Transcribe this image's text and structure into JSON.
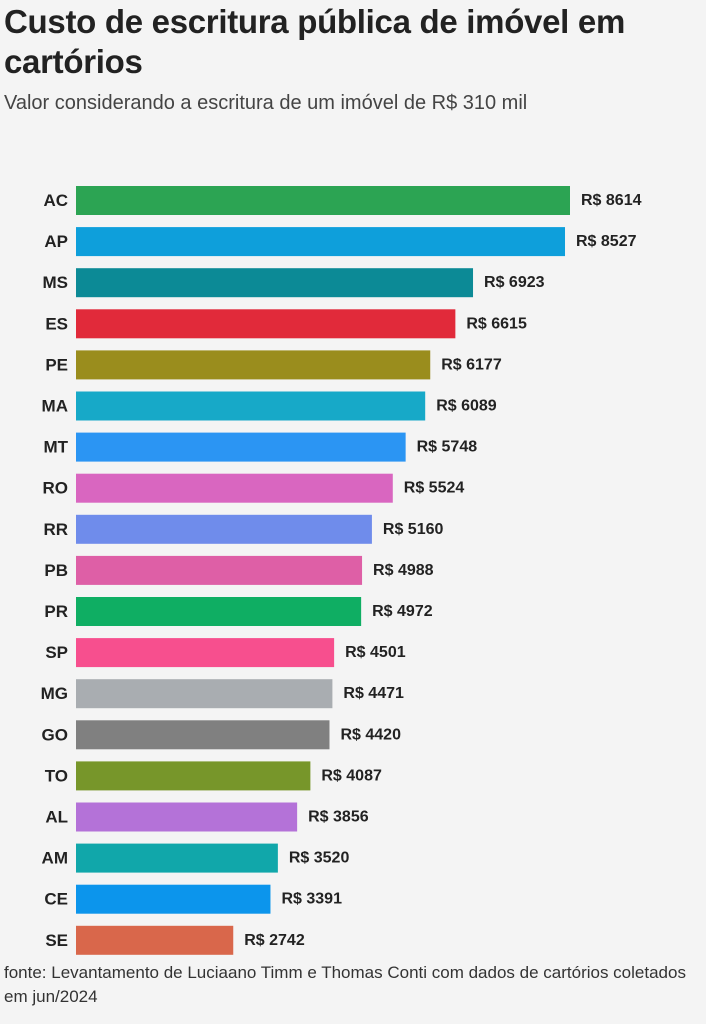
{
  "header": {
    "title": "Custo de escritura pública de imóvel em cartórios",
    "subtitle": "Valor considerando a escritura de um imóvel de R$ 310 mil"
  },
  "footer": {
    "source": "fonte: Levantamento de Luciaano Timm e Thomas Conti com dados de cartórios coletados em jun/2024"
  },
  "chart_data": {
    "type": "bar",
    "orientation": "horizontal",
    "title": "Custo de escritura pública de imóvel em cartórios",
    "subtitle": "Valor considerando a escritura de um imóvel de R$ 310 mil",
    "xlabel": "",
    "ylabel": "",
    "grid": false,
    "legend": "none",
    "xlim": [
      0,
      8614
    ],
    "value_prefix": "R$ ",
    "categories": [
      "AC",
      "AP",
      "MS",
      "ES",
      "PE",
      "MA",
      "MT",
      "RO",
      "RR",
      "PB",
      "PR",
      "SP",
      "MG",
      "GO",
      "TO",
      "AL",
      "AM",
      "CE",
      "SE"
    ],
    "values": [
      8614,
      8527,
      6923,
      6615,
      6177,
      6089,
      5748,
      5524,
      5160,
      4988,
      4972,
      4501,
      4471,
      4420,
      4087,
      3856,
      3520,
      3391,
      2742
    ],
    "colors": [
      "#2ca453",
      "#0e9fdb",
      "#0c8a96",
      "#e12a3a",
      "#9a8d1d",
      "#17a9c8",
      "#2b95f3",
      "#d966c0",
      "#6f8ceb",
      "#de5fa6",
      "#0fae63",
      "#f74f8e",
      "#a9adb1",
      "#808080",
      "#77962a",
      "#b472d8",
      "#11a7aa",
      "#0c95ec",
      "#d9674b"
    ]
  }
}
